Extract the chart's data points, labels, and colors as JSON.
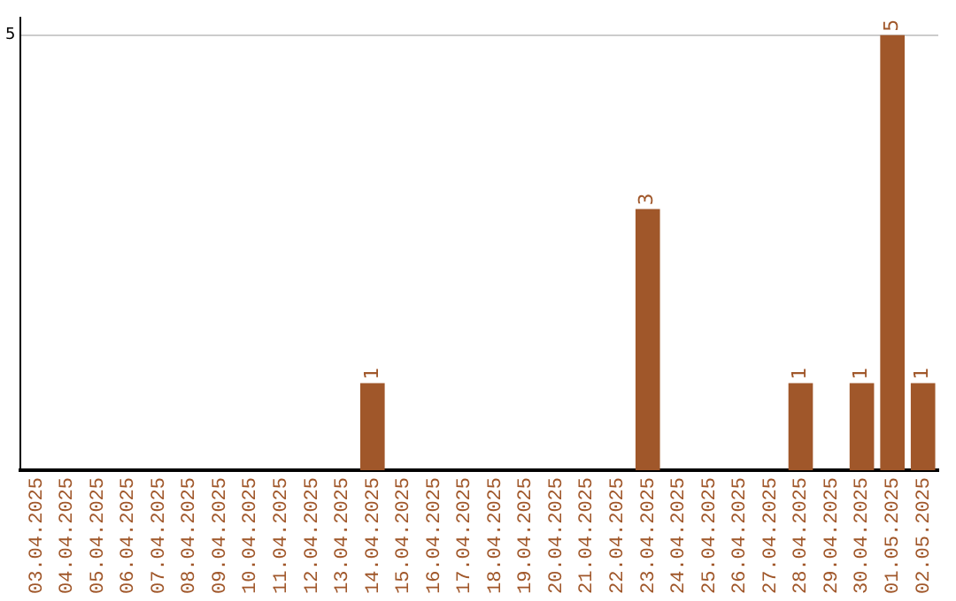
{
  "chart_data": {
    "type": "bar",
    "categories": [
      "03.04.2025",
      "04.04.2025",
      "05.04.2025",
      "06.04.2025",
      "07.04.2025",
      "08.04.2025",
      "09.04.2025",
      "10.04.2025",
      "11.04.2025",
      "12.04.2025",
      "13.04.2025",
      "14.04.2025",
      "15.04.2025",
      "16.04.2025",
      "17.04.2025",
      "18.04.2025",
      "19.04.2025",
      "20.04.2025",
      "21.04.2025",
      "22.04.2025",
      "23.04.2025",
      "24.04.2025",
      "25.04.2025",
      "26.04.2025",
      "27.04.2025",
      "28.04.2025",
      "29.04.2025",
      "30.04.2025",
      "01.05.2025",
      "02.05.2025"
    ],
    "values": [
      0,
      0,
      0,
      0,
      0,
      0,
      0,
      0,
      0,
      0,
      0,
      1,
      0,
      0,
      0,
      0,
      0,
      0,
      0,
      0,
      3,
      0,
      0,
      0,
      0,
      1,
      0,
      1,
      5,
      1
    ],
    "value_labels": [
      null,
      null,
      null,
      null,
      null,
      null,
      null,
      null,
      null,
      null,
      null,
      "1",
      null,
      null,
      null,
      null,
      null,
      null,
      null,
      null,
      "3",
      null,
      null,
      null,
      null,
      "1",
      null,
      "1",
      "5",
      "1"
    ],
    "color": "#a0572a",
    "ylim": [
      0,
      5.2
    ],
    "yticks": [
      5
    ],
    "grid": "y",
    "legend": false
  }
}
